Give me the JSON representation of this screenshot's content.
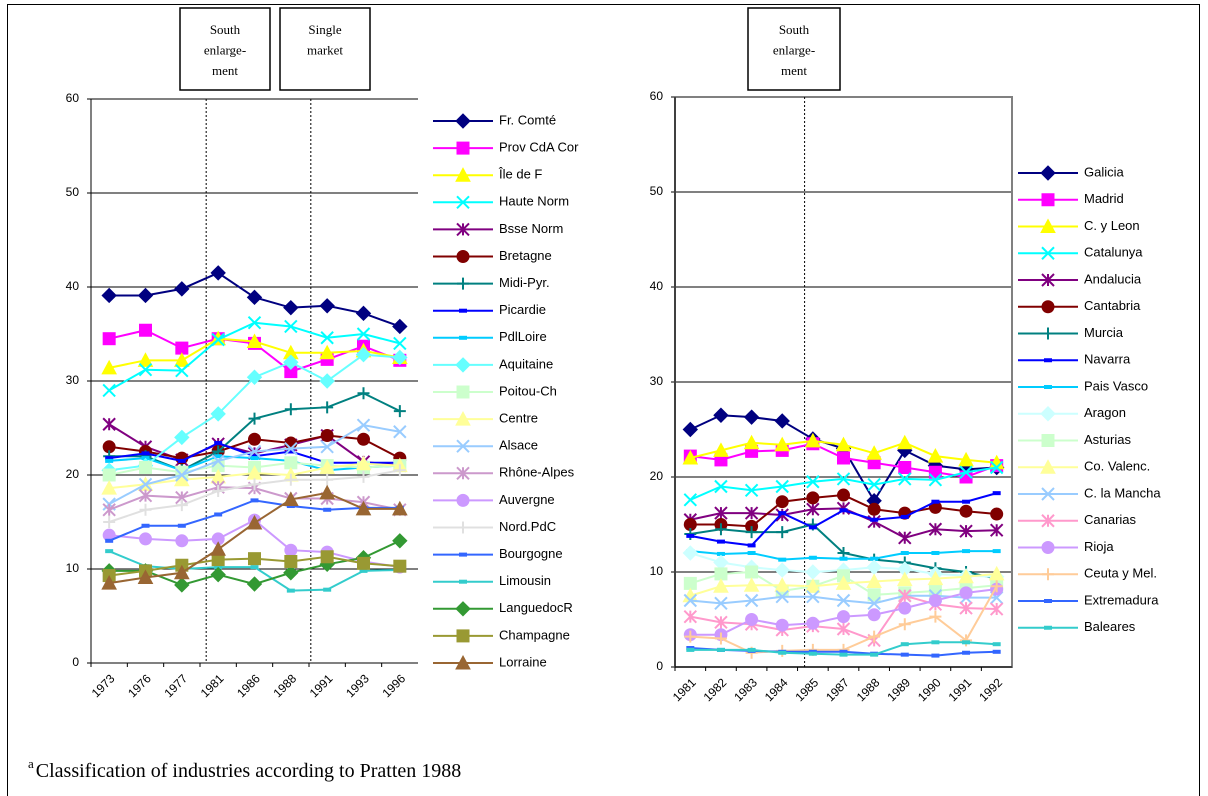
{
  "chart_data": [
    {
      "type": "line",
      "categories": [
        "1973",
        "1976",
        "1977",
        "1981",
        "1986",
        "1988",
        "1991",
        "1993",
        "1996"
      ],
      "ylim": [
        0,
        60
      ],
      "yticks": [
        0,
        10,
        20,
        30,
        40,
        50,
        60
      ],
      "grid": true,
      "annotations": [
        [
          "South",
          "enlarge-",
          "ment"
        ],
        [
          "Single",
          "market"
        ]
      ],
      "series": [
        {
          "name": "Fr. Comté",
          "color": "#000080",
          "marker": "diamond",
          "values": [
            39.1,
            39.1,
            39.8,
            41.5,
            38.9,
            37.8,
            38,
            37.2,
            35.8
          ]
        },
        {
          "name": "Prov CdA Cor",
          "color": "#ff00ff",
          "marker": "square",
          "values": [
            34.5,
            35.4,
            33.5,
            34.5,
            34,
            31,
            32.3,
            33.7,
            32.2
          ]
        },
        {
          "name": "Île de F",
          "color": "#ffff00",
          "marker": "triangle",
          "values": [
            31.4,
            32.2,
            32.2,
            34.5,
            34.2,
            33,
            33,
            33.2,
            32.5
          ]
        },
        {
          "name": "Haute Norm",
          "color": "#00ffff",
          "marker": "x",
          "values": [
            29,
            31.2,
            31.1,
            34.4,
            36.2,
            35.8,
            34.6,
            35,
            34
          ]
        },
        {
          "name": "Bsse Norm",
          "color": "#800080",
          "marker": "star",
          "values": [
            25.4,
            23,
            21.6,
            23.3,
            22.3,
            23.2,
            24.2,
            21.4,
            21
          ]
        },
        {
          "name": "Bretagne",
          "color": "#800000",
          "marker": "circle",
          "values": [
            23,
            22.5,
            21.8,
            22.5,
            23.8,
            23.4,
            24.2,
            23.8,
            21.8
          ]
        },
        {
          "name": "Midi-Pyr.",
          "color": "#008080",
          "marker": "plus",
          "values": [
            22,
            22,
            20.5,
            22.5,
            26,
            27,
            27.2,
            28.7,
            26.8
          ]
        },
        {
          "name": "Picardie",
          "color": "#0000ff",
          "marker": "dash",
          "values": [
            21.8,
            22.3,
            21.5,
            23.4,
            22,
            22.5,
            21.3,
            21.3,
            21.3
          ]
        },
        {
          "name": "PdlLoire",
          "color": "#00ccff",
          "marker": "dash",
          "values": [
            21.5,
            21.8,
            20.5,
            22,
            21.8,
            21.5,
            20.5,
            20.8,
            21
          ]
        },
        {
          "name": "Aquitaine",
          "color": "#66ffff",
          "marker": "diamond",
          "values": [
            20.5,
            21,
            24,
            26.5,
            30.4,
            32,
            30,
            32.8,
            32.5
          ]
        },
        {
          "name": "Poitou-Ch",
          "color": "#ccffcc",
          "marker": "square",
          "values": [
            20,
            20.8,
            20.3,
            21,
            20.8,
            21.3,
            21,
            20.8,
            21
          ]
        },
        {
          "name": "Centre",
          "color": "#ffff99",
          "marker": "triangle",
          "values": [
            18.6,
            19,
            19.5,
            19.8,
            20.2,
            20,
            20.8,
            21.2,
            21
          ]
        },
        {
          "name": "Alsace",
          "color": "#99ccff",
          "marker": "x",
          "values": [
            16.9,
            19,
            20,
            21.5,
            22.5,
            22.8,
            23,
            25.3,
            24.6
          ]
        },
        {
          "name": "Rhône-Alpes",
          "color": "#cc99cc",
          "marker": "star",
          "values": [
            16.3,
            17.8,
            17.6,
            18.7,
            18.6,
            17.5,
            17.5,
            17.1,
            16.3
          ]
        },
        {
          "name": "Auvergne",
          "color": "#cc99ff",
          "marker": "circle",
          "values": [
            13.6,
            13.2,
            13,
            13.2,
            15.2,
            12,
            11.8,
            10.8,
            10.2
          ]
        },
        {
          "name": "Nord.PdC",
          "color": "#e0e0e0",
          "marker": "plus",
          "values": [
            15,
            16.3,
            16.8,
            18.3,
            19,
            19.5,
            19.5,
            19.8,
            20.5
          ]
        },
        {
          "name": "Bourgogne",
          "color": "#3366ff",
          "marker": "dash",
          "values": [
            13,
            14.6,
            14.6,
            15.8,
            17.3,
            16.7,
            16.3,
            16.5,
            16.5
          ]
        },
        {
          "name": "Limousin",
          "color": "#33cccc",
          "marker": "dash",
          "values": [
            11.9,
            10.3,
            10,
            10.2,
            10.2,
            7.7,
            7.8,
            9.8,
            9.9
          ]
        },
        {
          "name": "LanguedocR",
          "color": "#339933",
          "marker": "diamond",
          "values": [
            9.8,
            9.8,
            8.3,
            9.4,
            8.4,
            9.6,
            10.5,
            11.2,
            13
          ]
        },
        {
          "name": "Champagne",
          "color": "#999933",
          "marker": "square",
          "values": [
            9.3,
            9.8,
            10.4,
            11,
            11.1,
            10.8,
            11.3,
            10.6,
            10.3
          ]
        },
        {
          "name": "Lorraine",
          "color": "#996633",
          "marker": "triangle",
          "values": [
            8.5,
            9.1,
            9.6,
            12.1,
            14.9,
            17.4,
            18.1,
            16.4,
            16.4
          ]
        }
      ]
    },
    {
      "type": "line",
      "categories": [
        "1981",
        "1982",
        "1983",
        "1984",
        "1985",
        "1987",
        "1988",
        "1989",
        "1990",
        "1991",
        "1992"
      ],
      "ylim": [
        0,
        60
      ],
      "yticks": [
        0,
        10,
        20,
        30,
        40,
        50,
        60
      ],
      "grid": true,
      "annotations": [
        [
          "South",
          "enlarge-",
          "ment"
        ]
      ],
      "series": [
        {
          "name": "Galicia",
          "color": "#000080",
          "marker": "diamond",
          "values": [
            25,
            26.5,
            26.3,
            25.9,
            24,
            23,
            17.5,
            22.8,
            21.2,
            20.8,
            21
          ]
        },
        {
          "name": "Madrid",
          "color": "#ff00ff",
          "marker": "square",
          "values": [
            22.2,
            21.8,
            22.7,
            22.8,
            23.5,
            22,
            21.5,
            21,
            20.5,
            20,
            21.2
          ]
        },
        {
          "name": "C. y Leon",
          "color": "#ffff00",
          "marker": "triangle",
          "values": [
            22,
            22.8,
            23.6,
            23.4,
            23.8,
            23.4,
            22.5,
            23.6,
            22.2,
            21.8,
            21.5
          ]
        },
        {
          "name": "Catalunya",
          "color": "#00ffff",
          "marker": "x",
          "values": [
            17.6,
            19,
            18.6,
            19,
            19.5,
            19.8,
            19.2,
            19.8,
            19.7,
            20.5,
            21
          ]
        },
        {
          "name": "Andalucia",
          "color": "#800080",
          "marker": "star",
          "values": [
            15.5,
            16.2,
            16.2,
            16,
            16.6,
            16.7,
            15.3,
            13.6,
            14.5,
            14.3,
            14.4
          ]
        },
        {
          "name": "Cantabria",
          "color": "#800000",
          "marker": "circle",
          "values": [
            15,
            15,
            14.8,
            17.4,
            17.8,
            18.1,
            16.6,
            16.2,
            16.8,
            16.4,
            16.1
          ]
        },
        {
          "name": "Murcia",
          "color": "#008080",
          "marker": "plus",
          "values": [
            14,
            14.5,
            14.2,
            14.2,
            15,
            12,
            11.3,
            11,
            10.4,
            10,
            9.3
          ]
        },
        {
          "name": "Navarra",
          "color": "#0000ff",
          "marker": "dash",
          "values": [
            13.8,
            13.2,
            12.8,
            16.2,
            14.7,
            16.5,
            15.5,
            15.8,
            17.4,
            17.4,
            18.3
          ]
        },
        {
          "name": "Pais Vasco",
          "color": "#00ccff",
          "marker": "dash",
          "values": [
            12.2,
            11.9,
            12,
            11.3,
            11.5,
            11.4,
            11.4,
            12,
            12,
            12.2,
            12.2
          ]
        },
        {
          "name": "Aragon",
          "color": "#ccffff",
          "marker": "diamond",
          "values": [
            12,
            11,
            10.5,
            10.2,
            10,
            10.2,
            10.5,
            10.3,
            9.8,
            9.6,
            9.5
          ]
        },
        {
          "name": "Asturias",
          "color": "#ccffcc",
          "marker": "square",
          "values": [
            8.8,
            9.8,
            10,
            8,
            8.5,
            9.6,
            7.6,
            7.8,
            8,
            8.3,
            8.6
          ]
        },
        {
          "name": "Co. Valenc.",
          "color": "#ffff99",
          "marker": "triangle",
          "values": [
            7.5,
            8.5,
            8.6,
            8.6,
            8.5,
            8.8,
            9,
            9.2,
            9.3,
            9.5,
            9.8
          ]
        },
        {
          "name": "C. la Mancha",
          "color": "#99ccff",
          "marker": "x",
          "values": [
            7,
            6.7,
            7,
            7.4,
            7.4,
            7,
            6.7,
            7.5,
            7.5,
            7.3,
            7.3
          ]
        },
        {
          "name": "Canarias",
          "color": "#ff99cc",
          "marker": "star",
          "values": [
            5.3,
            4.7,
            4.5,
            3.9,
            4.3,
            4,
            2.8,
            7.5,
            6.6,
            6.2,
            6.1
          ]
        },
        {
          "name": "Rioja",
          "color": "#cc99ff",
          "marker": "circle",
          "values": [
            3.4,
            3.4,
            5,
            4.4,
            4.6,
            5.3,
            5.5,
            6.2,
            7,
            7.8,
            8.2
          ]
        },
        {
          "name": "Ceuta y Mel.",
          "color": "#ffcc99",
          "marker": "plus",
          "values": [
            3.2,
            3,
            1.5,
            1.7,
            1.8,
            1.8,
            3.2,
            4.5,
            5.3,
            2.8,
            8.5
          ]
        },
        {
          "name": "Extremadura",
          "color": "#3366ff",
          "marker": "dash",
          "values": [
            2,
            1.8,
            1.7,
            1.6,
            1.6,
            1.6,
            1.4,
            1.3,
            1.2,
            1.5,
            1.6
          ]
        },
        {
          "name": "Baleares",
          "color": "#33cccc",
          "marker": "dash",
          "values": [
            1.8,
            1.8,
            1.8,
            1.5,
            1.4,
            1.3,
            1.3,
            2.4,
            2.6,
            2.6,
            2.4
          ]
        }
      ]
    }
  ],
  "footnote": {
    "marker": "a",
    "text": "Classification of industries according to Pratten 1988"
  }
}
